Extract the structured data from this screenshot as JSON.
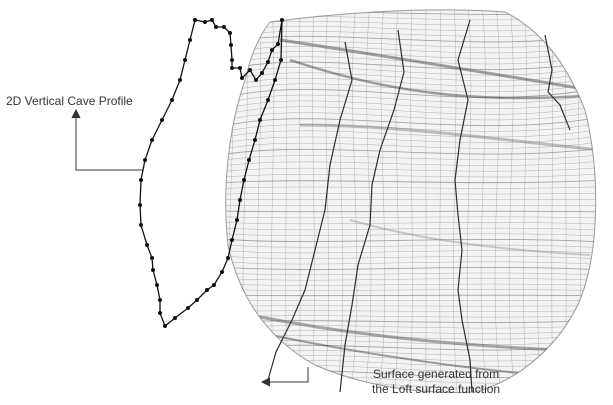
{
  "annotations": {
    "profile_label": "2D Vertical Cave Profile",
    "surface_label_line1": "Surface generated from",
    "surface_label_line2": "the Loft surface function"
  },
  "colors": {
    "mesh": "#8c8c8c",
    "mesh_dark": "#3a3a3a",
    "profile": "#111111",
    "leader": "#333333"
  }
}
